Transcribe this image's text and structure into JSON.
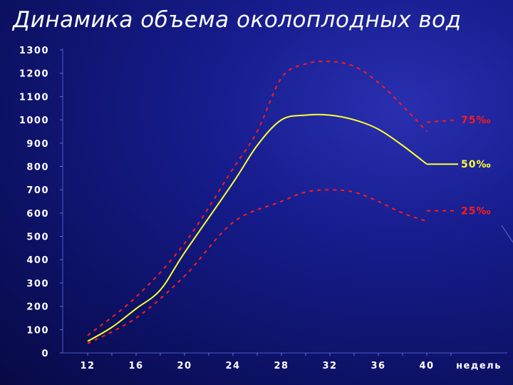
{
  "slide": {
    "title": "Динамика объема околоплодных вод"
  },
  "chart_data": {
    "type": "line",
    "title": "Динамика объема околоплодных вод",
    "x_unit_label": "недель",
    "x_ticks": [
      "12",
      "16",
      "20",
      "24",
      "28",
      "32",
      "36",
      "40"
    ],
    "xlim": [
      10,
      46
    ],
    "y_ticks": [
      "0",
      "100",
      "200",
      "300",
      "400",
      "500",
      "600",
      "700",
      "800",
      "900",
      "1000",
      "1100",
      "1200",
      "1300"
    ],
    "ylim": [
      0,
      1300
    ],
    "grid": false,
    "series": [
      {
        "name": "75‰",
        "color": "#ff1a1a",
        "style": "dashed",
        "points": [
          [
            12,
            75
          ],
          [
            16,
            240
          ],
          [
            20,
            470
          ],
          [
            24,
            790
          ],
          [
            26,
            950
          ],
          [
            28,
            1180
          ],
          [
            30,
            1240
          ],
          [
            32,
            1250
          ],
          [
            34,
            1230
          ],
          [
            36,
            1160
          ],
          [
            38,
            1060
          ],
          [
            40,
            950
          ]
        ],
        "tail": [
          [
            40,
            990
          ],
          [
            42,
            1000
          ]
        ]
      },
      {
        "name": "50‰",
        "color": "#ffff33",
        "style": "solid",
        "points": [
          [
            12,
            50
          ],
          [
            14,
            110
          ],
          [
            16,
            190
          ],
          [
            18,
            270
          ],
          [
            20,
            430
          ],
          [
            24,
            730
          ],
          [
            26,
            890
          ],
          [
            28,
            1000
          ],
          [
            30,
            1020
          ],
          [
            32,
            1020
          ],
          [
            34,
            1000
          ],
          [
            36,
            960
          ],
          [
            38,
            890
          ],
          [
            40,
            810
          ]
        ],
        "tail": [
          [
            40,
            810
          ],
          [
            42,
            810
          ]
        ]
      },
      {
        "name": "25‰",
        "color": "#ff1a1a",
        "style": "dashed",
        "points": [
          [
            12,
            40
          ],
          [
            16,
            150
          ],
          [
            20,
            330
          ],
          [
            24,
            560
          ],
          [
            28,
            650
          ],
          [
            30,
            690
          ],
          [
            32,
            700
          ],
          [
            34,
            690
          ],
          [
            36,
            650
          ],
          [
            38,
            600
          ],
          [
            40,
            565
          ]
        ],
        "tail": [
          [
            40,
            610
          ],
          [
            42,
            610
          ]
        ]
      }
    ]
  }
}
